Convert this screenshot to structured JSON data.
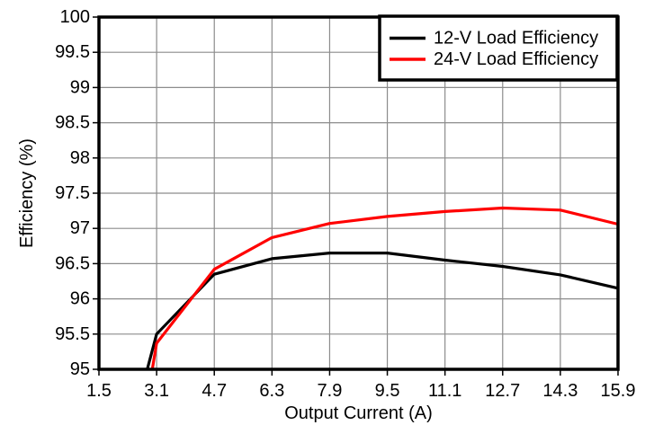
{
  "figure": {
    "background": "#ffffff"
  },
  "chart_data": {
    "type": "line",
    "title": "",
    "xlabel": "Output Current (A)",
    "ylabel": "Efficiency (%)",
    "xlim": [
      1.5,
      15.9
    ],
    "ylim": [
      95,
      100
    ],
    "xtick_labels": [
      "1.5",
      "3.1",
      "4.7",
      "6.3",
      "7.9",
      "9.5",
      "11.1",
      "12.7",
      "14.3",
      "15.9"
    ],
    "ytick_labels": [
      "95",
      "95.5",
      "96",
      "96.5",
      "97",
      "97.5",
      "98",
      "98.5",
      "99",
      "99.5",
      "100"
    ],
    "grid": true,
    "grid_color": "#8c8c8c",
    "frame_color": "#000000",
    "text_color": "#000000",
    "legend": {
      "position": "top-right",
      "border_color": "#000000",
      "background": "#ffffff",
      "entries": [
        {
          "label": "12-V Load Efficiency",
          "color": "#000000"
        },
        {
          "label": "24-V Load Efficiency",
          "color": "#ff0000"
        }
      ]
    },
    "series": [
      {
        "name": "12-V Load Efficiency",
        "color": "#000000",
        "points": [
          [
            2.84,
            95.0
          ],
          [
            3.1,
            95.5
          ],
          [
            4.7,
            96.35
          ],
          [
            6.3,
            96.57
          ],
          [
            7.9,
            96.65
          ],
          [
            9.5,
            96.65
          ],
          [
            11.1,
            96.55
          ],
          [
            12.7,
            96.46
          ],
          [
            14.3,
            96.34
          ],
          [
            15.9,
            96.15
          ]
        ]
      },
      {
        "name": "24-V Load Efficiency",
        "color": "#ff0000",
        "points": [
          [
            2.98,
            95.0
          ],
          [
            3.1,
            95.37
          ],
          [
            4.7,
            96.42
          ],
          [
            6.3,
            96.87
          ],
          [
            7.9,
            97.07
          ],
          [
            9.5,
            97.17
          ],
          [
            11.1,
            97.24
          ],
          [
            12.7,
            97.29
          ],
          [
            14.3,
            97.26
          ],
          [
            15.9,
            97.06
          ]
        ]
      }
    ]
  }
}
